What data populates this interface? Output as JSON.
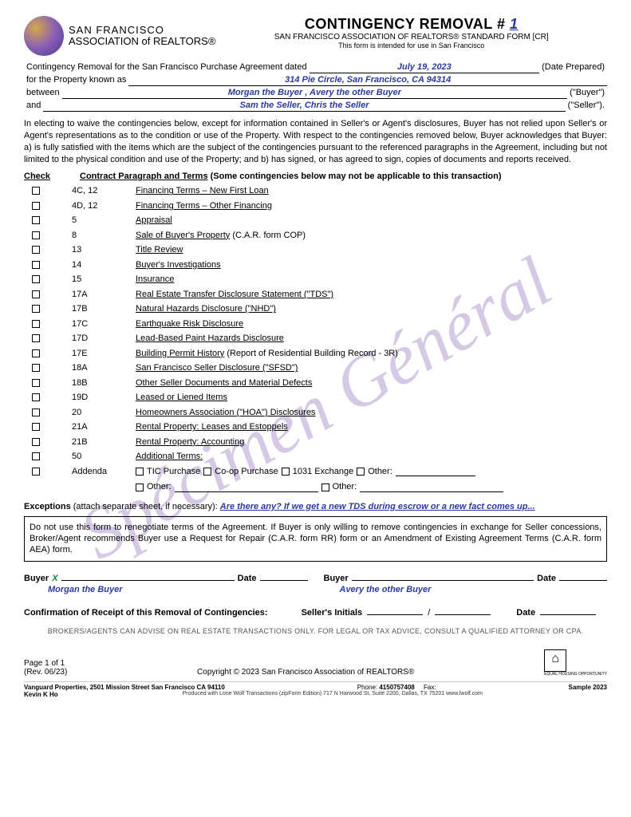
{
  "watermark": "Spécimen Général",
  "logo": {
    "line1": "SAN FRANCISCO",
    "line2": "ASSOCIATION of REALTORS®"
  },
  "title": {
    "main": "CONTINGENCY REMOVAL #",
    "number": "1",
    "sub": "SAN FRANCISCO ASSOCIATION OF REALTORS® STANDARD FORM [CR]",
    "sub2": "This form is intended for use in San Francisco"
  },
  "intro": {
    "line1_pre": "Contingency Removal for the San Francisco Purchase Agreement dated",
    "date": "July 19, 2023",
    "line1_post": "(Date Prepared)",
    "line2_pre": "for the Property known as",
    "property": "314 Pie Circle, San Francisco, CA  94314",
    "line3_pre": "between",
    "buyer": "Morgan the Buyer , Avery the other Buyer",
    "line3_post": "(\"Buyer\")",
    "line4_pre": "and",
    "seller": "Sam the Seller, Chris the Seller",
    "line4_post": "(\"Seller\")."
  },
  "paragraph": "In electing to waive the contingencies below, except for information contained in Seller's or Agent's disclosures, Buyer has not relied upon Seller's or Agent's representations as to the condition or use of the Property. With respect to the contingencies removed below, Buyer acknowledges that Buyer: a) is fully satisfied with the items which are the subject of the contingencies pursuant to the referenced paragraphs in the Agreement, including but not limited to the physical condition and use of the Property; and b) has signed, or has agreed to sign, copies of documents and reports received.",
  "table_head": {
    "check": "Check",
    "para": "Contract Paragraph and Terms",
    "note": "(Some contingencies below may not be applicable to this transaction)"
  },
  "rows": [
    {
      "para": "4C, 12",
      "term": "Financing Terms – New First Loan",
      "extra": ""
    },
    {
      "para": "4D, 12",
      "term": "Financing Terms – Other Financing",
      "extra": ""
    },
    {
      "para": "5",
      "term": "Appraisal",
      "extra": ""
    },
    {
      "para": "8",
      "term": "Sale of Buyer's Property",
      "extra": " (C.A.R. form COP)"
    },
    {
      "para": "13",
      "term": "Title Review",
      "extra": ""
    },
    {
      "para": "14",
      "term": "Buyer's Investigations",
      "extra": ""
    },
    {
      "para": "15",
      "term": "Insurance",
      "extra": ""
    },
    {
      "para": "17A",
      "term": "Real Estate Transfer Disclosure Statement (\"TDS\")",
      "extra": ""
    },
    {
      "para": "17B",
      "term": "Natural Hazards Disclosure (\"NHD\")",
      "extra": ""
    },
    {
      "para": "17C",
      "term": "Earthquake Risk Disclosure",
      "extra": ""
    },
    {
      "para": "17D",
      "term": "Lead-Based Paint Hazards Disclosure",
      "extra": ""
    },
    {
      "para": "17E",
      "term": "Building Permit History",
      "extra": " (Report of Residential Building Record - 3R)"
    },
    {
      "para": "18A",
      "term": "San Francisco Seller Disclosure (\"SFSD\")",
      "extra": ""
    },
    {
      "para": "18B",
      "term": "Other Seller Documents and Material Defects",
      "extra": ""
    },
    {
      "para": "19D",
      "term": "Leased or Liened Items",
      "extra": ""
    },
    {
      "para": "20",
      "term": "Homeowners Association (\"HOA\") Disclosures",
      "extra": ""
    },
    {
      "para": "21A",
      "term": "Rental Property: Leases and Estoppels",
      "extra": ""
    },
    {
      "para": "21B",
      "term": "Rental Property: Accounting",
      "extra": ""
    },
    {
      "para": "50",
      "term": "Additional Terms:",
      "extra": ""
    }
  ],
  "addenda": {
    "label": "Addenda",
    "opts": [
      "TIC Purchase",
      "Co-op Purchase",
      "1031 Exchange",
      "Other:"
    ],
    "opts2": [
      "Other:",
      "Other:"
    ]
  },
  "exceptions": {
    "label": "Exceptions",
    "note": "(attach separate sheet, if necessary):",
    "value": "Are there any? If we get a new TDS during escrow or a new fact comes up..."
  },
  "box": "Do not use this form to renegotiate terms of the Agreement. If Buyer is only willing to remove contingencies in exchange for Seller concessions, Broker/Agent recommends Buyer use a Request for Repair (C.A.R. form RR) form or an Amendment of Existing Agreement Terms (C.A.R. form AEA) form.",
  "sig": {
    "buyer_label": "Buyer",
    "date_label": "Date",
    "x": "X",
    "name1": "Morgan the Buyer",
    "name2": "Avery the other Buyer",
    "confirm": "Confirmation of Receipt of this Removal of Contingencies:",
    "initials": "Seller's Initials",
    "slash": "/"
  },
  "disclaimer": "BROKERS/AGENTS CAN ADVISE ON REAL ESTATE TRANSACTIONS ONLY. FOR LEGAL OR TAX ADVICE, CONSULT A QUALIFIED ATTORNEY OR CPA.",
  "footer": {
    "page": "Page 1 of 1",
    "rev": "(Rev. 06/23)",
    "copyright": "Copyright © 2023 San Francisco Association of REALTORS®"
  },
  "broker": {
    "left": "Vanguard Properties, 2501 Mission Street San Francisco CA 94110",
    "phone_label": "Phone:",
    "phone": "4150757408",
    "fax_label": "Fax:",
    "right": "Sample 2023",
    "name": "Kevin K Ho",
    "produced": "Produced with Lone Wolf Transactions (zipForm Edition) 717 N Harwood St, Suite 2200, Dallas, TX  75201   www.lwolf.com"
  }
}
